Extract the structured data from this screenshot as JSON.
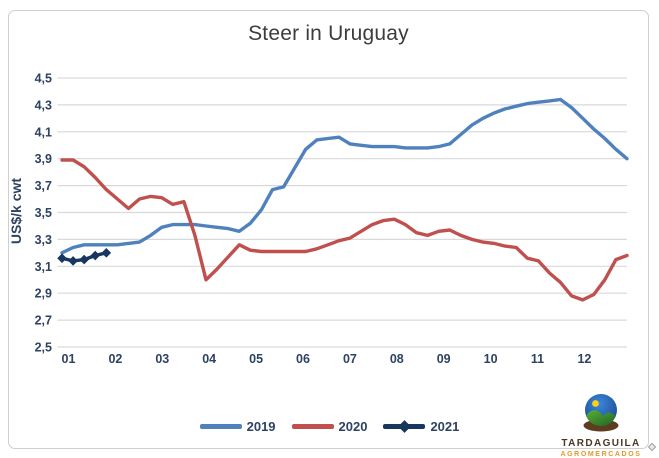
{
  "title": "Steer in Uruguay",
  "y_axis": {
    "title": "US$/k cwt",
    "tick_labels": [
      "4,5",
      "4,3",
      "4,1",
      "3,9",
      "3,7",
      "3,5",
      "3,3",
      "3,1",
      "2,9",
      "2,7",
      "2,5"
    ]
  },
  "x_axis": {
    "tick_labels": [
      "01",
      "02",
      "03",
      "04",
      "05",
      "06",
      "07",
      "08",
      "09",
      "10",
      "11",
      "12"
    ]
  },
  "legend": {
    "items": [
      {
        "label": "2019",
        "color": "#4F81BD",
        "marker": "line"
      },
      {
        "label": "2020",
        "color": "#C0504D",
        "marker": "line"
      },
      {
        "label": "2021",
        "color": "#17375E",
        "marker": "line-diamond"
      }
    ]
  },
  "logo": {
    "brand": "TARDAGUILA",
    "subtext": "AGROMERCADOS",
    "colors": {
      "sky": "#2a6cc5",
      "hill": "#3f9b35",
      "sun": "#f7d11e",
      "base": "#5d3d1f",
      "brand_text": "#4a3826",
      "subtext": "#e09b2d"
    }
  },
  "chart_data": {
    "type": "line",
    "title": "Steer in Uruguay",
    "ylabel": "US$/k cwt",
    "ylim": [
      2.5,
      4.5
    ],
    "ytick_step": 0.2,
    "grid": "horizontal",
    "legend_position": "bottom",
    "x_unit": "week",
    "x_month_labels": [
      "01",
      "02",
      "03",
      "04",
      "05",
      "06",
      "07",
      "08",
      "09",
      "10",
      "11",
      "12"
    ],
    "series": [
      {
        "name": "2019",
        "color": "#4F81BD",
        "marker": "none",
        "values": [
          3.2,
          3.24,
          3.26,
          3.26,
          3.26,
          3.26,
          3.27,
          3.28,
          3.33,
          3.39,
          3.41,
          3.41,
          3.41,
          3.4,
          3.39,
          3.38,
          3.36,
          3.42,
          3.52,
          3.67,
          3.69,
          3.83,
          3.97,
          4.04,
          4.05,
          4.06,
          4.01,
          4.0,
          3.99,
          3.99,
          3.99,
          3.98,
          3.98,
          3.98,
          3.99,
          4.01,
          4.08,
          4.15,
          4.2,
          4.24,
          4.27,
          4.29,
          4.31,
          4.32,
          4.33,
          4.34,
          4.28,
          4.2,
          4.12,
          4.05,
          3.97,
          3.9
        ]
      },
      {
        "name": "2020",
        "color": "#C0504D",
        "marker": "none",
        "values": [
          3.89,
          3.89,
          3.84,
          3.76,
          3.67,
          3.6,
          3.53,
          3.6,
          3.62,
          3.61,
          3.56,
          3.58,
          3.33,
          3.0,
          3.08,
          3.17,
          3.26,
          3.22,
          3.21,
          3.21,
          3.21,
          3.21,
          3.21,
          3.23,
          3.26,
          3.29,
          3.31,
          3.36,
          3.41,
          3.44,
          3.45,
          3.41,
          3.35,
          3.33,
          3.36,
          3.37,
          3.33,
          3.3,
          3.28,
          3.27,
          3.25,
          3.24,
          3.16,
          3.14,
          3.05,
          2.98,
          2.88,
          2.85,
          2.89,
          3.0,
          3.15,
          3.18
        ]
      },
      {
        "name": "2021",
        "color": "#17375E",
        "marker": "diamond",
        "values": [
          3.16,
          3.14,
          3.15,
          3.18,
          3.2
        ]
      }
    ]
  }
}
